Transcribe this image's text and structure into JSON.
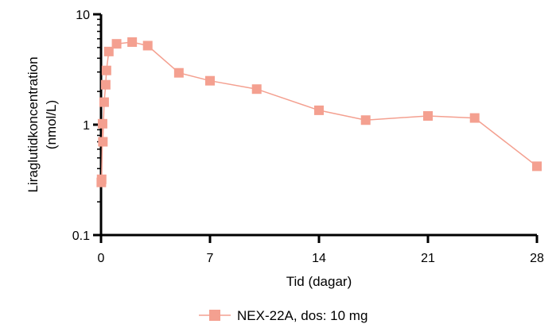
{
  "chart_data": {
    "type": "line",
    "xlabel": "Tid (dagar)",
    "ylabel": [
      "Liraglutidkoncentration",
      "(nmol/L)"
    ],
    "xlim": [
      0,
      28
    ],
    "ylim": [
      0.1,
      10
    ],
    "y_scale": "log",
    "x_ticks": [
      0,
      7,
      14,
      21,
      28
    ],
    "x_tick_labels": [
      "0",
      "7",
      "14",
      "21",
      "28"
    ],
    "y_ticks": [
      0.1,
      1,
      10
    ],
    "y_tick_labels": [
      "0.1",
      "1",
      "10"
    ],
    "grid": false,
    "legend_position": "bottom",
    "series": [
      {
        "name": "NEX-22A, dos: 10 mg",
        "color": "#F4A090",
        "marker": "square",
        "x": [
          0.02,
          0.04,
          0.1,
          0.12,
          0.2,
          0.3,
          0.35,
          0.5,
          1,
          2,
          3,
          5,
          7,
          10,
          14,
          17,
          21,
          24,
          28
        ],
        "y": [
          0.3,
          0.32,
          1.02,
          0.7,
          1.6,
          2.3,
          3.1,
          4.6,
          5.4,
          5.6,
          5.2,
          2.95,
          2.5,
          2.1,
          1.35,
          1.1,
          1.2,
          1.15,
          0.42
        ]
      }
    ]
  }
}
